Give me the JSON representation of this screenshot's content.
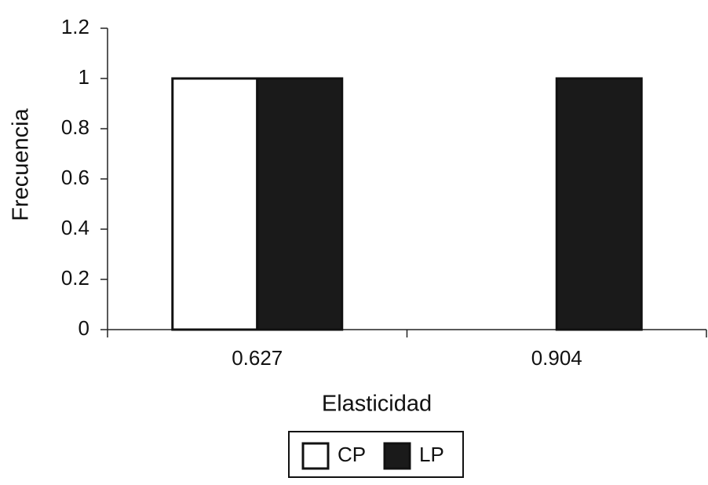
{
  "chart_data": {
    "type": "bar",
    "x_label": "Elasticidad",
    "y_label": "Frecuencia",
    "categories": [
      "0.627",
      "0.904"
    ],
    "series": [
      {
        "name": "CP",
        "color": "#ffffff",
        "values": [
          1,
          0
        ]
      },
      {
        "name": "LP",
        "color": "#1a1a1a",
        "values": [
          1,
          1
        ]
      }
    ],
    "ylim": [
      0,
      1.2
    ],
    "yticks": [
      0,
      0.2,
      0.4,
      0.6,
      0.8,
      1,
      1.2
    ],
    "grid": false,
    "legend": "bottom"
  }
}
